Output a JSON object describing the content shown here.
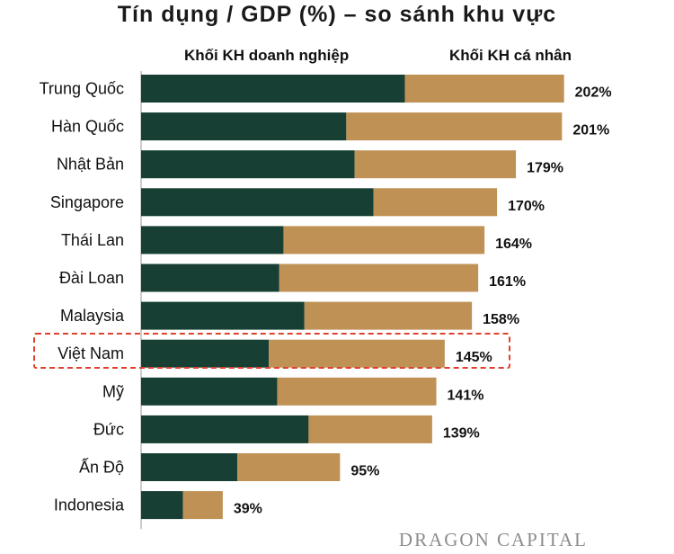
{
  "chart_data": {
    "type": "bar",
    "orientation": "horizontal",
    "stacked": true,
    "title": "Tín dụng / GDP (%) – so sánh khu vực",
    "categories": [
      "Trung Quốc",
      "Hàn Quốc",
      "Nhật Bản",
      "Singapore",
      "Thái Lan",
      "Đài Loan",
      "Malaysia",
      "Việt Nam",
      "Mỹ",
      "Đức",
      "Ấn Độ",
      "Indonesia"
    ],
    "series": [
      {
        "name": "Khối KH doanh nghiệp",
        "values": [
          126,
          98,
          102,
          111,
          68,
          66,
          78,
          61,
          65,
          80,
          46,
          20
        ],
        "color": "#173f33"
      },
      {
        "name": "Khối KH cá nhân",
        "values": [
          76,
          103,
          77,
          59,
          96,
          95,
          80,
          84,
          76,
          59,
          49,
          19
        ],
        "color": "#bf9155"
      }
    ],
    "totals": [
      "202%",
      "201%",
      "179%",
      "170%",
      "164%",
      "161%",
      "158%",
      "145%",
      "141%",
      "139%",
      "95%",
      "39%"
    ],
    "highlight_category": "Việt Nam",
    "legend_position": "top",
    "grid": false
  },
  "watermark": "DRAGON CAPITAL"
}
